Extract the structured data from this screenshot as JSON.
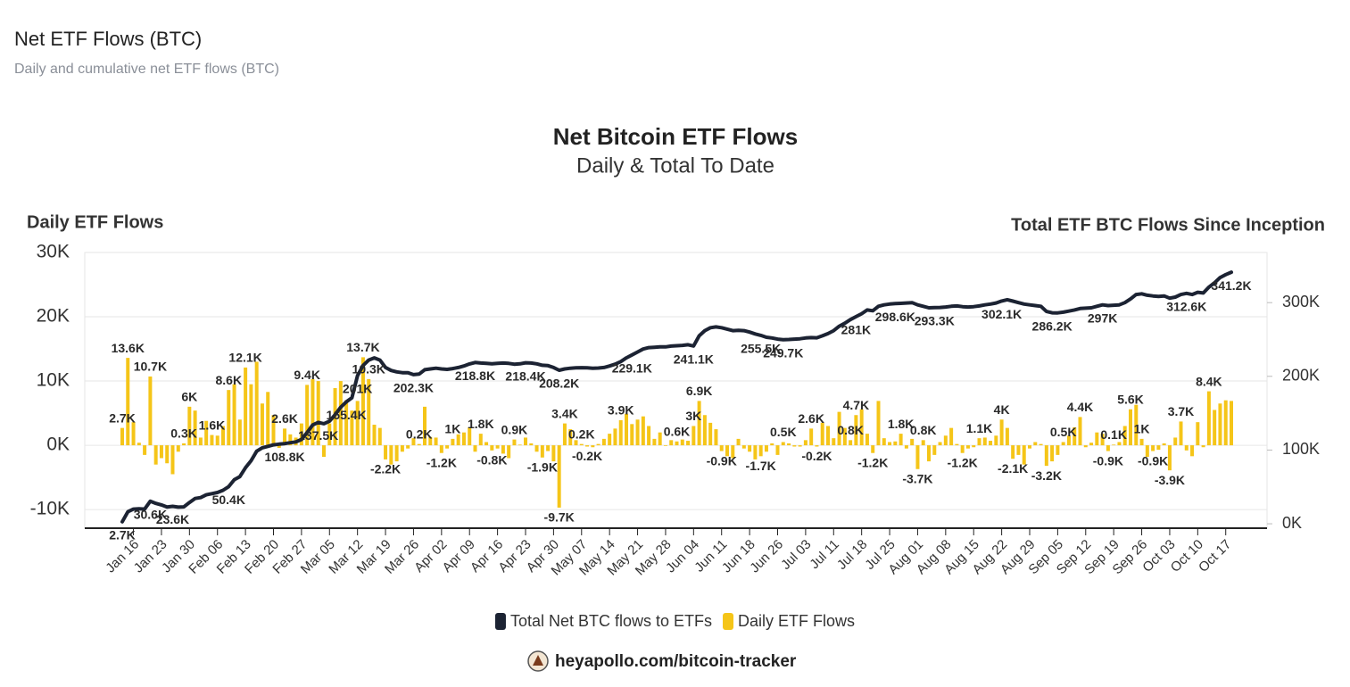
{
  "page": {
    "title": "Net ETF Flows (BTC)",
    "subtitle": "Daily and cumulative net ETF flows (BTC)"
  },
  "chart_data": {
    "type": "combo",
    "title": "Net Bitcoin ETF Flows",
    "subtitle": "Daily & Total To Date",
    "y_label": "Daily ETF Flows",
    "y2_label": "Total ETF BTC Flows Since Inception",
    "grid": true,
    "legend": "bottom",
    "ylim": [
      -12900,
      30000
    ],
    "yticks": [
      {
        "value": -10000,
        "label": "-10K"
      },
      {
        "value": 0,
        "label": "0K"
      },
      {
        "value": 10000,
        "label": "10K"
      },
      {
        "value": 20000,
        "label": "20K"
      },
      {
        "value": 30000,
        "label": "30K"
      }
    ],
    "y2lim": [
      -6000,
      368000
    ],
    "y2ticks": [
      {
        "value": 0,
        "label": "0K"
      },
      {
        "value": 100000,
        "label": "100K"
      },
      {
        "value": 200000,
        "label": "200K"
      },
      {
        "value": 300000,
        "label": "300K"
      }
    ],
    "categories": [
      null,
      null,
      "Jan 16",
      null,
      null,
      null,
      null,
      "Jan 23",
      null,
      null,
      null,
      null,
      "Jan 30",
      null,
      null,
      null,
      null,
      "Feb 06",
      null,
      null,
      null,
      null,
      "Feb 13",
      null,
      null,
      null,
      null,
      "Feb 20",
      null,
      null,
      null,
      null,
      "Feb 27",
      null,
      null,
      null,
      null,
      "Mar 05",
      null,
      null,
      null,
      null,
      "Mar 12",
      null,
      null,
      null,
      null,
      "Mar 19",
      null,
      null,
      null,
      null,
      "Mar 26",
      null,
      null,
      null,
      null,
      "Apr 02",
      null,
      null,
      null,
      null,
      "Apr 09",
      null,
      null,
      null,
      null,
      "Apr 16",
      null,
      null,
      null,
      null,
      "Apr 23",
      null,
      null,
      null,
      null,
      "Apr 30",
      null,
      null,
      null,
      null,
      "May 07",
      null,
      null,
      null,
      null,
      "May 14",
      null,
      null,
      null,
      null,
      "May 21",
      null,
      null,
      null,
      null,
      "May 28",
      null,
      null,
      null,
      null,
      "Jun 04",
      null,
      null,
      null,
      null,
      "Jun 11",
      null,
      null,
      null,
      null,
      "Jun 18",
      null,
      null,
      null,
      null,
      "Jun 26",
      null,
      null,
      null,
      null,
      "Jul 03",
      null,
      null,
      null,
      null,
      "Jul 11",
      null,
      null,
      null,
      null,
      "Jul 18",
      null,
      null,
      null,
      null,
      "Jul 25",
      null,
      null,
      null,
      null,
      "Aug 01",
      null,
      null,
      null,
      null,
      "Aug 08",
      null,
      null,
      null,
      null,
      "Aug 15",
      null,
      null,
      null,
      null,
      "Aug 22",
      null,
      null,
      null,
      null,
      "Aug 29",
      null,
      null,
      null,
      null,
      "Sep 05",
      null,
      null,
      null,
      null,
      "Sep 12",
      null,
      null,
      null,
      null,
      "Sep 19",
      null,
      null,
      null,
      null,
      "Sep 26",
      null,
      null,
      null,
      null,
      "Oct 03",
      null,
      null,
      null,
      null,
      "Oct 10",
      null,
      null,
      null,
      null,
      "Oct 17",
      null
    ],
    "series": [
      {
        "name": "Total Net BTC flows to ETFs",
        "type": "line",
        "axis": "y2",
        "color": "#1c2333",
        "values": [
          2700,
          16300,
          19900,
          20300,
          19900,
          30600,
          27600,
          25600,
          22800,
          23600,
          22600,
          22900,
          28900,
          34300,
          35500,
          39300,
          40900,
          42400,
          45400,
          50400,
          59900,
          63900,
          76000,
          85500,
          98500,
          103000,
          105000,
          107000,
          108000,
          108800,
          110000,
          111000,
          114400,
          123800,
          134000,
          137500,
          135700,
          139100,
          148000,
          158000,
          165400,
          170800,
          201000,
          214700,
          222000,
          225000,
          222000,
          212000,
          208000,
          206000,
          205000,
          205000,
          202300,
          203000,
          209000,
          210000,
          211000,
          210000,
          209500,
          210500,
          212000,
          214000,
          216800,
          218800,
          218000,
          217500,
          217000,
          217500,
          218000,
          217500,
          216500,
          217000,
          218400,
          218000,
          217000,
          215000,
          214500,
          212000,
          208200,
          210000,
          211000,
          211500,
          211700,
          211500,
          211000,
          211200,
          212000,
          214000,
          216500,
          220000,
          225000,
          229100,
          233000,
          237000,
          239000,
          239500,
          240000,
          240000,
          241000,
          241500,
          242000,
          242800,
          241100,
          255000,
          262000,
          266000,
          267000,
          266000,
          264000,
          262000,
          262500,
          262000,
          260000,
          257500,
          255500,
          253000,
          252000,
          250500,
          249700,
          250000,
          250500,
          251000,
          252000,
          252500,
          252300,
          255000,
          258000,
          262000,
          268000,
          272000,
          277000,
          281000,
          285000,
          290000,
          289000,
          295000,
          297000,
          298000,
          298600,
          299000,
          299500,
          300000,
          297000,
          295000,
          293000,
          293300,
          293500,
          294000,
          295000,
          295500,
          294500,
          294000,
          294500,
          295500,
          297000,
          298000,
          299500,
          302100,
          304000,
          302000,
          300000,
          298000,
          297000,
          296000,
          295000,
          288000,
          286200,
          286000,
          287000,
          288500,
          290000,
          292000,
          292500,
          293000,
          295000,
          297000,
          296000,
          296500,
          297000,
          300000,
          305000,
          311000,
          312000,
          310000,
          309000,
          308500,
          309000,
          306000,
          307500,
          311000,
          312600,
          311000,
          314000,
          313000,
          321000,
          327000,
          334000,
          338000,
          341200
        ],
        "value_labels": [
          "2.7K",
          null,
          null,
          null,
          null,
          "30.6K",
          null,
          null,
          null,
          "23.6K",
          null,
          null,
          null,
          null,
          null,
          null,
          null,
          null,
          null,
          "50.4K",
          null,
          null,
          null,
          null,
          null,
          null,
          null,
          null,
          null,
          "108.8K",
          null,
          null,
          null,
          null,
          null,
          "137.5K",
          null,
          null,
          null,
          null,
          "165.4K",
          null,
          "201K",
          null,
          null,
          null,
          null,
          null,
          null,
          null,
          null,
          null,
          "202.3K",
          null,
          null,
          null,
          null,
          null,
          null,
          null,
          null,
          null,
          null,
          "218.8K",
          null,
          null,
          null,
          null,
          null,
          null,
          null,
          null,
          "218.4K",
          null,
          null,
          null,
          null,
          null,
          "208.2K",
          null,
          null,
          null,
          null,
          null,
          null,
          null,
          null,
          null,
          null,
          null,
          null,
          "229.1K",
          null,
          null,
          null,
          null,
          null,
          null,
          null,
          null,
          null,
          null,
          "241.1K",
          null,
          null,
          null,
          null,
          null,
          null,
          null,
          null,
          null,
          null,
          null,
          "255.5K",
          null,
          null,
          null,
          "249.7K",
          null,
          null,
          null,
          null,
          null,
          null,
          null,
          null,
          null,
          null,
          null,
          null,
          "281K",
          null,
          null,
          null,
          null,
          null,
          null,
          "298.6K",
          null,
          null,
          null,
          null,
          null,
          null,
          "293.3K",
          null,
          null,
          null,
          null,
          null,
          null,
          null,
          null,
          null,
          null,
          null,
          "302.1K",
          null,
          null,
          null,
          null,
          null,
          null,
          null,
          null,
          "286.2K",
          null,
          null,
          null,
          null,
          null,
          null,
          null,
          null,
          "297K",
          null,
          null,
          null,
          null,
          null,
          null,
          null,
          null,
          null,
          null,
          null,
          null,
          null,
          null,
          "312.6K",
          null,
          null,
          null,
          null,
          null,
          null,
          null,
          "341.2K"
        ]
      },
      {
        "name": "Daily ETF Flows",
        "type": "bar",
        "axis": "y",
        "color": "#f5c518",
        "values": [
          2700,
          13600,
          3600,
          400,
          -1500,
          10700,
          -3000,
          -2000,
          -2800,
          -4500,
          -1000,
          300,
          6000,
          5400,
          1200,
          3800,
          1600,
          1500,
          3000,
          8600,
          9500,
          4000,
          12100,
          9500,
          13000,
          6500,
          8300,
          4700,
          -400,
          2600,
          1700,
          1200,
          3400,
          9400,
          10300,
          10000,
          -1800,
          3400,
          8900,
          10000,
          7000,
          5400,
          6900,
          13700,
          10300,
          3200,
          2700,
          -2200,
          -3000,
          -2500,
          -1000,
          -500,
          1100,
          200,
          6000,
          1300,
          1200,
          -1200,
          -500,
          1000,
          1700,
          2000,
          2800,
          -1000,
          1800,
          500,
          -800,
          -500,
          -1300,
          -2000,
          900,
          100,
          1200,
          300,
          -1000,
          -1900,
          -900,
          -2500,
          -9700,
          3400,
          2500,
          800,
          200,
          -200,
          -300,
          200,
          1000,
          1800,
          2600,
          3900,
          4900,
          3300,
          4000,
          4500,
          3000,
          1000,
          2000,
          -100,
          800,
          600,
          900,
          700,
          3000,
          6900,
          4700,
          3500,
          2500,
          -900,
          -1700,
          -2000,
          1000,
          -500,
          -1000,
          -2200,
          -1700,
          -1000,
          300,
          -1500,
          500,
          300,
          -200,
          -200,
          800,
          2600,
          -200,
          3500,
          3000,
          1100,
          5200,
          2700,
          800,
          4700,
          5600,
          1800,
          -1200,
          6900,
          1100,
          500,
          600,
          1800,
          -500,
          1000,
          -3700,
          800,
          -2500,
          -1500,
          500,
          1500,
          2700,
          200,
          -1200,
          -500,
          -300,
          1100,
          1200,
          700,
          1500,
          4000,
          2700,
          -2100,
          -1500,
          -3000,
          -500,
          500,
          200,
          -3200,
          -2500,
          -1500,
          500,
          1500,
          2800,
          4400,
          -300,
          400,
          2000,
          1800,
          -900,
          100,
          500,
          3000,
          5600,
          6300,
          1000,
          -1800,
          -900,
          -700,
          300,
          -3900,
          1200,
          3700,
          -800,
          -1700,
          3600,
          -300,
          8400,
          5500,
          6500,
          7000,
          6900
        ],
        "value_labels": [
          "2.7K",
          "13.6K",
          null,
          null,
          null,
          "10.7K",
          null,
          null,
          null,
          null,
          null,
          "0.3K",
          "6K",
          null,
          null,
          null,
          "1.6K",
          null,
          null,
          "8.6K",
          null,
          null,
          "12.1K",
          null,
          null,
          null,
          null,
          null,
          null,
          "2.6K",
          null,
          null,
          null,
          "9.4K",
          null,
          null,
          null,
          null,
          null,
          null,
          null,
          null,
          null,
          "13.7K",
          "10.3K",
          null,
          null,
          "-2.2K",
          null,
          null,
          null,
          null,
          null,
          "0.2K",
          null,
          null,
          null,
          "-1.2K",
          null,
          "1K",
          null,
          null,
          null,
          null,
          "1.8K",
          null,
          "-0.8K",
          null,
          null,
          null,
          "0.9K",
          null,
          null,
          null,
          null,
          "-1.9K",
          null,
          null,
          "-9.7K",
          "3.4K",
          null,
          null,
          "0.2K",
          "-0.2K",
          null,
          null,
          null,
          null,
          null,
          "3.9K",
          null,
          null,
          null,
          null,
          null,
          null,
          null,
          null,
          null,
          "0.6K",
          null,
          null,
          "3K",
          "6.9K",
          null,
          null,
          null,
          "-0.9K",
          null,
          null,
          null,
          null,
          null,
          null,
          "-1.7K",
          null,
          null,
          null,
          "0.5K",
          null,
          null,
          null,
          null,
          "2.6K",
          "-0.2K",
          null,
          null,
          null,
          null,
          null,
          "0.8K",
          "4.7K",
          null,
          null,
          "-1.2K",
          null,
          null,
          null,
          null,
          "1.8K",
          null,
          null,
          "-3.7K",
          "0.8K",
          null,
          null,
          null,
          null,
          null,
          null,
          "-1.2K",
          null,
          null,
          "1.1K",
          null,
          null,
          null,
          "4K",
          null,
          "-2.1K",
          null,
          null,
          null,
          null,
          null,
          "-3.2K",
          null,
          null,
          "0.5K",
          null,
          null,
          "4.4K",
          null,
          null,
          null,
          null,
          "-0.9K",
          "0.1K",
          null,
          null,
          "5.6K",
          null,
          "1K",
          null,
          "-0.9K",
          null,
          null,
          "-3.9K",
          null,
          "3.7K",
          null,
          null,
          null,
          null,
          "8.4K",
          null,
          null,
          null,
          null
        ]
      }
    ]
  },
  "footer": {
    "source": "heyapollo.com/bitcoin-tracker"
  }
}
